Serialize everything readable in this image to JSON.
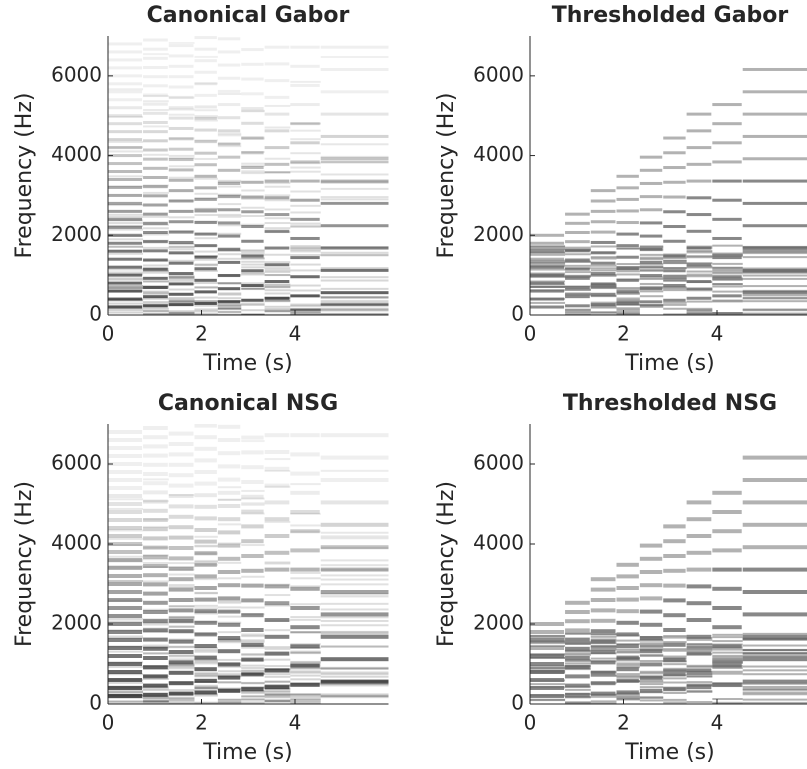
{
  "chart_data": [
    {
      "type": "spectrogram",
      "title": "Canonical Gabor",
      "xlabel": "Time (s)",
      "ylabel": "Frequency (Hz)",
      "xlim": [
        0,
        6
      ],
      "ylim": [
        0,
        7000
      ],
      "xticks": [
        0,
        2,
        4
      ],
      "yticks": [
        0,
        2000,
        4000,
        6000
      ]
    },
    {
      "type": "spectrogram",
      "title": "Thresholded Gabor",
      "xlabel": "Time (s)",
      "ylabel": "Frequency (Hz)",
      "xlim": [
        0,
        6
      ],
      "ylim": [
        0,
        7000
      ],
      "xticks": [
        0,
        2,
        4
      ],
      "yticks": [
        0,
        2000,
        4000,
        6000
      ]
    },
    {
      "type": "spectrogram",
      "title": "Canonical NSG",
      "xlabel": "Time (s)",
      "ylabel": "Frequency (Hz)",
      "xlim": [
        0,
        6
      ],
      "ylim": [
        0,
        7000
      ],
      "xticks": [
        0,
        2,
        4
      ],
      "yticks": [
        0,
        2000,
        4000,
        6000
      ]
    },
    {
      "type": "spectrogram",
      "title": "Thresholded NSG",
      "xlabel": "Time (s)",
      "ylabel": "Frequency (Hz)",
      "xlim": [
        0,
        6
      ],
      "ylim": [
        0,
        7000
      ],
      "xticks": [
        0,
        2,
        4
      ],
      "yticks": [
        0,
        2000,
        4000,
        6000
      ]
    }
  ]
}
